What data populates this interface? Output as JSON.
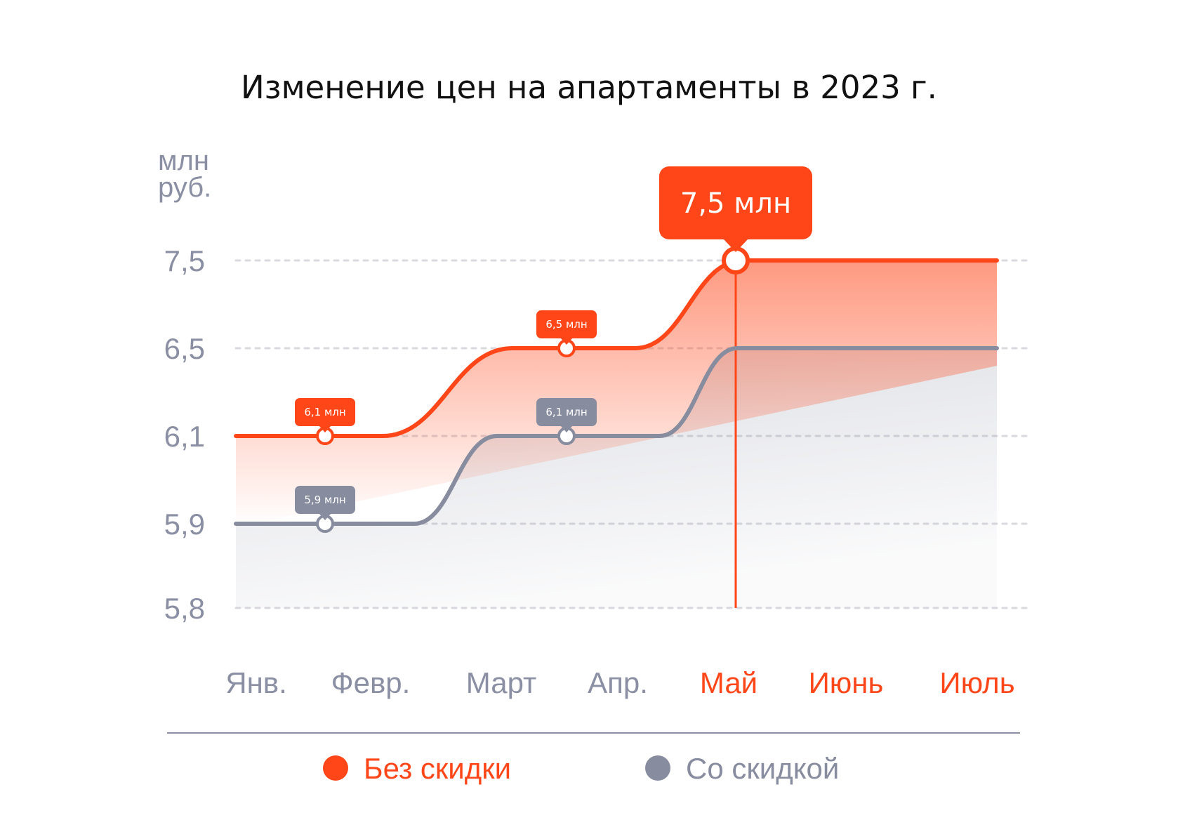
{
  "colors": {
    "accent": "#fe4619",
    "secondary": "#878c9f",
    "grid": "#d9d9df",
    "title": "#111111",
    "axis_text": "#8a8fa3"
  },
  "chart_data": {
    "type": "line",
    "title": "Изменение цен на апартаменты в 2023 г.",
    "ylabel_line1": "млн",
    "ylabel_line2": "руб.",
    "yticks": [
      "7,5",
      "6,5",
      "6,1",
      "5,9",
      "5,8"
    ],
    "categories": [
      "Янв.",
      "Февр.",
      "Март",
      "Апр.",
      "Май",
      "Июнь",
      "Июль"
    ],
    "highlighted_categories": [
      "Май",
      "Июнь",
      "Июль"
    ],
    "series": [
      {
        "name": "Без скидки",
        "values": [
          6.1,
          6.1,
          6.5,
          6.5,
          7.5,
          7.5,
          7.5
        ],
        "point_labels": [
          {
            "category": "Февр.",
            "value": 6.1,
            "text": "6,1 млн"
          },
          {
            "category": "Апр.",
            "value": 6.5,
            "text": "6,5 млн"
          },
          {
            "category": "Май",
            "value": 7.5,
            "text": "7,5 млн",
            "highlight": true
          }
        ]
      },
      {
        "name": "Со скидкой",
        "values": [
          5.9,
          5.9,
          6.1,
          6.1,
          6.5,
          6.5,
          6.5
        ],
        "point_labels": [
          {
            "category": "Февр.",
            "value": 5.9,
            "text": "5,9 млн"
          },
          {
            "category": "Апр.",
            "value": 6.1,
            "text": "6,1 млн"
          }
        ]
      }
    ],
    "highlight_category": "Май",
    "grid": true,
    "legend_position": "bottom"
  }
}
